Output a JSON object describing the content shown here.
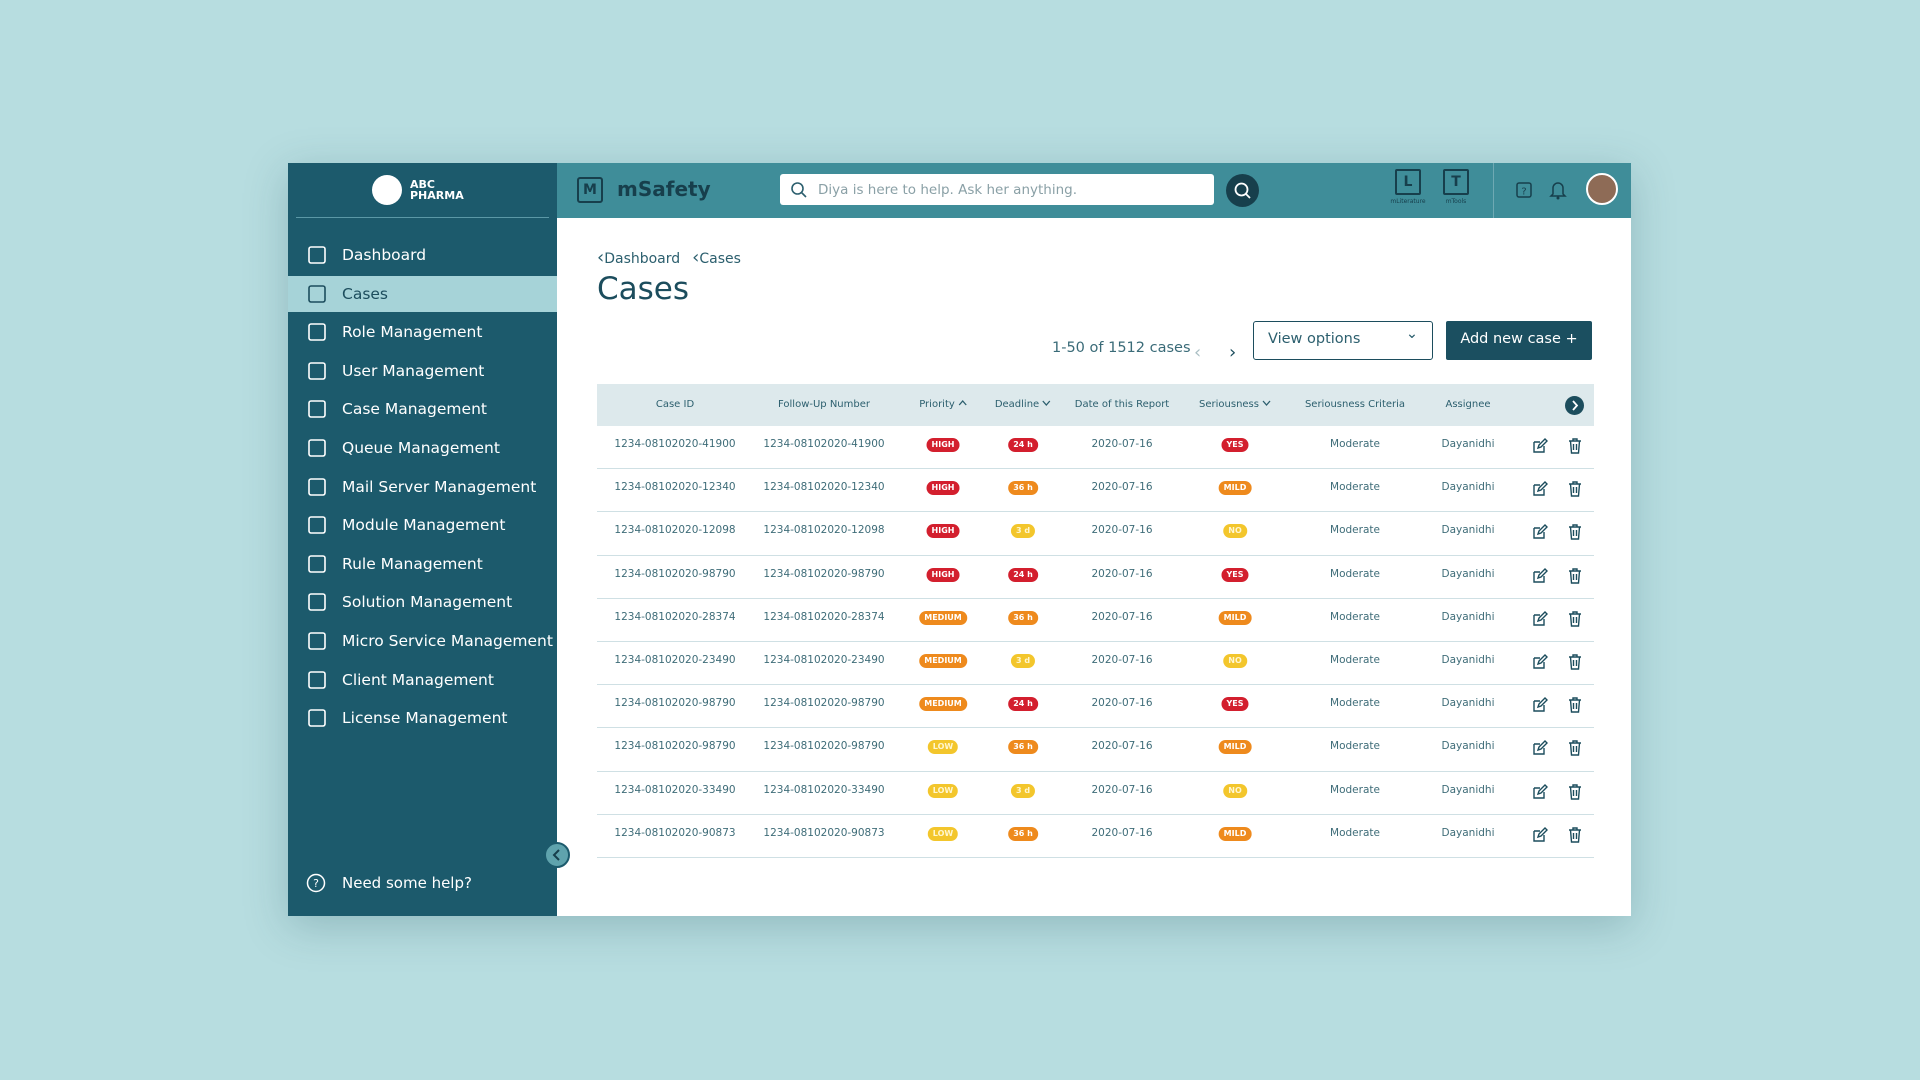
{
  "brand": {
    "line1": "ABC",
    "line2": "PHARMA"
  },
  "sidebar": {
    "active": 1,
    "items": [
      "Dashboard",
      "Cases",
      "Role Management",
      "User Management",
      "Case Management",
      "Queue Management",
      "Mail Server Management",
      "Module Management",
      "Rule Management",
      "Solution Management",
      "Micro Service Management",
      "Client Management",
      "License Management"
    ],
    "help": "Need some help?"
  },
  "header": {
    "app_letter": "M",
    "app_name": "mSafety",
    "search_placeholder": "Diya is here to help. Ask her anything.",
    "apps": [
      {
        "letter": "L",
        "label": "mLiterature"
      },
      {
        "letter": "T",
        "label": "mTools"
      }
    ]
  },
  "breadcrumb": [
    "Dashboard",
    "Cases"
  ],
  "title": "Cases",
  "pagination": "1-50 of 1512 cases",
  "view_options": "View options",
  "add_button": "Add new case +",
  "table": {
    "columns": [
      {
        "label": "Case ID"
      },
      {
        "label": "Follow-Up Number"
      },
      {
        "label": "Priority",
        "sort": "asc"
      },
      {
        "label": "Deadline",
        "sort": "desc"
      },
      {
        "label": "Date of this Report"
      },
      {
        "label": "Seriousness",
        "sort": "desc"
      },
      {
        "label": "Seriousness Criteria"
      },
      {
        "label": "Assignee"
      }
    ],
    "rows": [
      {
        "case_id": "1234-08102020-41900",
        "follow_up": "1234-08102020-41900",
        "priority": {
          "text": "HIGH",
          "color": "#d31f2e"
        },
        "deadline": {
          "text": "24 h",
          "color": "#d31f2e"
        },
        "date": "2020-07-16",
        "seriousness": {
          "text": "YES",
          "color": "#d31f2e"
        },
        "criteria": "Moderate",
        "assignee": "Dayanidhi"
      },
      {
        "case_id": "1234-08102020-12340",
        "follow_up": "1234-08102020-12340",
        "priority": {
          "text": "HIGH",
          "color": "#d31f2e"
        },
        "deadline": {
          "text": "36 h",
          "color": "#ee8a1d"
        },
        "date": "2020-07-16",
        "seriousness": {
          "text": "MILD",
          "color": "#ee8a1d"
        },
        "criteria": "Moderate",
        "assignee": "Dayanidhi"
      },
      {
        "case_id": "1234-08102020-12098",
        "follow_up": "1234-08102020-12098",
        "priority": {
          "text": "HIGH",
          "color": "#d31f2e"
        },
        "deadline": {
          "text": "3 d",
          "color": "#f3c62c"
        },
        "date": "2020-07-16",
        "seriousness": {
          "text": "NO",
          "color": "#f3c62c"
        },
        "criteria": "Moderate",
        "assignee": "Dayanidhi"
      },
      {
        "case_id": "1234-08102020-98790",
        "follow_up": "1234-08102020-98790",
        "priority": {
          "text": "HIGH",
          "color": "#d31f2e"
        },
        "deadline": {
          "text": "24 h",
          "color": "#d31f2e"
        },
        "date": "2020-07-16",
        "seriousness": {
          "text": "YES",
          "color": "#d31f2e"
        },
        "criteria": "Moderate",
        "assignee": "Dayanidhi"
      },
      {
        "case_id": "1234-08102020-28374",
        "follow_up": "1234-08102020-28374",
        "priority": {
          "text": "MEDIUM",
          "color": "#ee8a1d"
        },
        "deadline": {
          "text": "36 h",
          "color": "#ee8a1d"
        },
        "date": "2020-07-16",
        "seriousness": {
          "text": "MILD",
          "color": "#ee8a1d"
        },
        "criteria": "Moderate",
        "assignee": "Dayanidhi"
      },
      {
        "case_id": "1234-08102020-23490",
        "follow_up": "1234-08102020-23490",
        "priority": {
          "text": "MEDIUM",
          "color": "#ee8a1d"
        },
        "deadline": {
          "text": "3 d",
          "color": "#f3c62c"
        },
        "date": "2020-07-16",
        "seriousness": {
          "text": "NO",
          "color": "#f3c62c"
        },
        "criteria": "Moderate",
        "assignee": "Dayanidhi"
      },
      {
        "case_id": "1234-08102020-98790",
        "follow_up": "1234-08102020-98790",
        "priority": {
          "text": "MEDIUM",
          "color": "#ee8a1d"
        },
        "deadline": {
          "text": "24 h",
          "color": "#d31f2e"
        },
        "date": "2020-07-16",
        "seriousness": {
          "text": "YES",
          "color": "#d31f2e"
        },
        "criteria": "Moderate",
        "assignee": "Dayanidhi"
      },
      {
        "case_id": "1234-08102020-98790",
        "follow_up": "1234-08102020-98790",
        "priority": {
          "text": "LOW",
          "color": "#f3c62c"
        },
        "deadline": {
          "text": "36 h",
          "color": "#ee8a1d"
        },
        "date": "2020-07-16",
        "seriousness": {
          "text": "MILD",
          "color": "#ee8a1d"
        },
        "criteria": "Moderate",
        "assignee": "Dayanidhi"
      },
      {
        "case_id": "1234-08102020-33490",
        "follow_up": "1234-08102020-33490",
        "priority": {
          "text": "LOW",
          "color": "#f3c62c"
        },
        "deadline": {
          "text": "3 d",
          "color": "#f3c62c"
        },
        "date": "2020-07-16",
        "seriousness": {
          "text": "NO",
          "color": "#f3c62c"
        },
        "criteria": "Moderate",
        "assignee": "Dayanidhi"
      },
      {
        "case_id": "1234-08102020-90873",
        "follow_up": "1234-08102020-90873",
        "priority": {
          "text": "LOW",
          "color": "#f3c62c"
        },
        "deadline": {
          "text": "36 h",
          "color": "#ee8a1d"
        },
        "date": "2020-07-16",
        "seriousness": {
          "text": "MILD",
          "color": "#ee8a1d"
        },
        "criteria": "Moderate",
        "assignee": "Dayanidhi"
      }
    ]
  }
}
